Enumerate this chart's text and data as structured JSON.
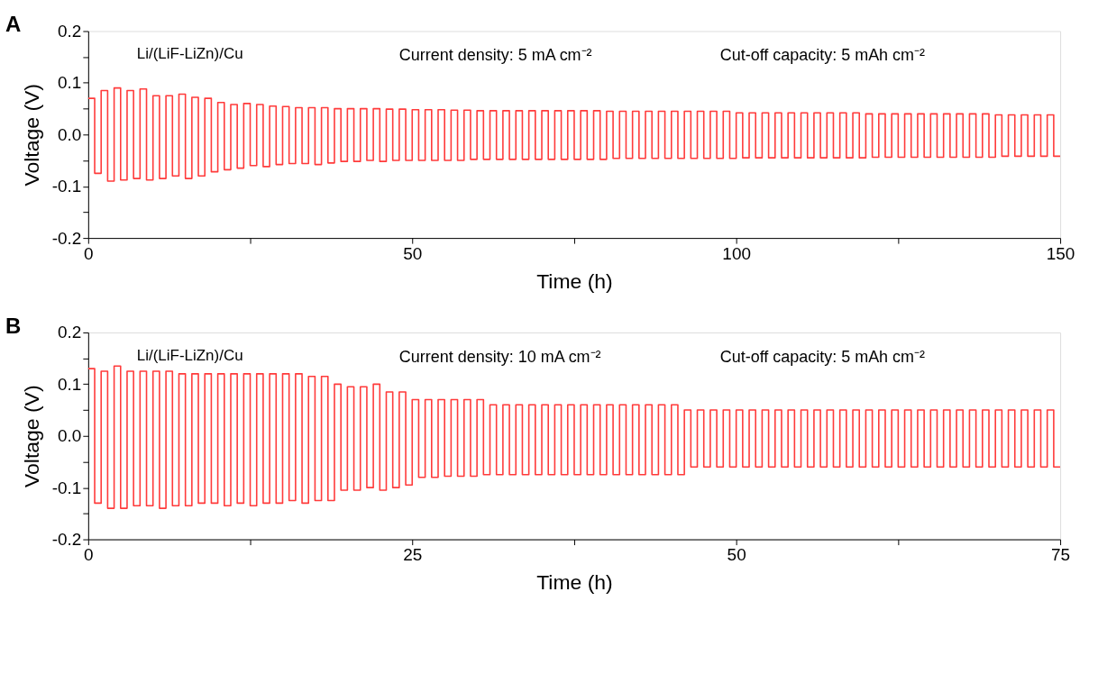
{
  "chart_data": [
    {
      "type": "step",
      "xlabel": "Time (h)",
      "ylabel": "Voltage (V)",
      "grid": false,
      "annotations": [
        "A",
        "Li/(LiF-LiZn)/Cu",
        "Current density: 5 mA cm⁻²",
        "Cut-off capacity: 5 mAh cm⁻²"
      ],
      "xlim": [
        0,
        150
      ],
      "xticks": [
        0,
        {
          "value": 25,
          "label": null
        },
        50,
        {
          "value": 75,
          "label": null
        },
        100,
        {
          "value": 125,
          "label": null
        },
        150
      ],
      "ylim": [
        -0.2,
        0.2
      ],
      "yticks": [
        -0.2,
        {
          "value": -0.15,
          "label": null
        },
        -0.1,
        {
          "value": -0.05,
          "label": null
        },
        {
          "value": 0,
          "label": "0.0"
        },
        {
          "value": 0.05,
          "label": null
        },
        0.1,
        {
          "value": 0.15,
          "label": null
        },
        0.2
      ],
      "series": [
        {
          "color": "#ff3b3b",
          "x": [
            0,
            1,
            2,
            3,
            4,
            5,
            6,
            7,
            8,
            9,
            10,
            11,
            12,
            13,
            14,
            15,
            16,
            17,
            18,
            19,
            20,
            21,
            22,
            23,
            24,
            25,
            26,
            27,
            28,
            29,
            30,
            31,
            32,
            33,
            34,
            35,
            36,
            37,
            38,
            39,
            40,
            41,
            42,
            43,
            44,
            45,
            46,
            47,
            48,
            49,
            50,
            51,
            52,
            53,
            54,
            55,
            56,
            57,
            58,
            59,
            60,
            61,
            62,
            63,
            64,
            65,
            66,
            67,
            68,
            69,
            70,
            71,
            72,
            73,
            74,
            75,
            76,
            77,
            78,
            79,
            80,
            81,
            82,
            83,
            84,
            85,
            86,
            87,
            88,
            89,
            90,
            91,
            92,
            93,
            94,
            95,
            96,
            97,
            98,
            99,
            100,
            101,
            102,
            103,
            104,
            105,
            106,
            107,
            108,
            109,
            110,
            111,
            112,
            113,
            114,
            115,
            116,
            117,
            118,
            119,
            120,
            121,
            122,
            123,
            124,
            125,
            126,
            127,
            128,
            129,
            130,
            131,
            132,
            133,
            134,
            135,
            136,
            137,
            138,
            139,
            140,
            141,
            142,
            143,
            144,
            145,
            146,
            147,
            148,
            149,
            150
          ],
          "values": [
            0.07,
            -0.075,
            0.085,
            -0.09,
            0.09,
            -0.088,
            0.085,
            -0.085,
            0.088,
            -0.088,
            0.075,
            -0.085,
            0.075,
            -0.08,
            0.078,
            -0.085,
            0.072,
            -0.08,
            0.07,
            -0.072,
            0.062,
            -0.068,
            0.058,
            -0.065,
            0.06,
            -0.06,
            0.058,
            -0.062,
            0.055,
            -0.058,
            0.054,
            -0.056,
            0.052,
            -0.056,
            0.052,
            -0.058,
            0.052,
            -0.055,
            0.05,
            -0.052,
            0.05,
            -0.052,
            0.05,
            -0.05,
            0.05,
            -0.052,
            0.049,
            -0.05,
            0.049,
            -0.05,
            0.048,
            -0.05,
            0.048,
            -0.05,
            0.048,
            -0.05,
            0.047,
            -0.05,
            0.047,
            -0.048,
            0.046,
            -0.048,
            0.046,
            -0.048,
            0.046,
            -0.048,
            0.046,
            -0.048,
            0.046,
            -0.048,
            0.046,
            -0.048,
            0.046,
            -0.048,
            0.046,
            -0.048,
            0.046,
            -0.048,
            0.046,
            -0.048,
            0.045,
            -0.046,
            0.045,
            -0.046,
            0.045,
            -0.046,
            0.045,
            -0.046,
            0.045,
            -0.046,
            0.045,
            -0.046,
            0.045,
            -0.046,
            0.045,
            -0.046,
            0.045,
            -0.046,
            0.045,
            -0.046,
            0.042,
            -0.045,
            0.042,
            -0.045,
            0.042,
            -0.045,
            0.042,
            -0.045,
            0.042,
            -0.045,
            0.042,
            -0.045,
            0.042,
            -0.045,
            0.042,
            -0.045,
            0.042,
            -0.045,
            0.042,
            -0.045,
            0.04,
            -0.044,
            0.04,
            -0.044,
            0.04,
            -0.044,
            0.04,
            -0.044,
            0.04,
            -0.044,
            0.04,
            -0.044,
            0.04,
            -0.044,
            0.04,
            -0.044,
            0.04,
            -0.044,
            0.04,
            -0.044,
            0.038,
            -0.042,
            0.038,
            -0.042,
            0.038,
            -0.042,
            0.038,
            -0.042,
            0.038,
            -0.042,
            -0.042
          ]
        }
      ]
    },
    {
      "type": "step",
      "xlabel": "Time (h)",
      "ylabel": "Voltage (V)",
      "grid": false,
      "annotations": [
        "B",
        "Li/(LiF-LiZn)/Cu",
        "Current density: 10 mA cm⁻²",
        "Cut-off capacity: 5 mAh cm⁻²"
      ],
      "xlim": [
        0,
        75
      ],
      "xticks": [
        0,
        {
          "value": 12.5,
          "label": null
        },
        25,
        {
          "value": 37.5,
          "label": null
        },
        50,
        {
          "value": 62.5,
          "label": null
        },
        75
      ],
      "ylim": [
        -0.2,
        0.2
      ],
      "yticks": [
        -0.2,
        {
          "value": -0.15,
          "label": null
        },
        -0.1,
        {
          "value": -0.05,
          "label": null
        },
        {
          "value": 0,
          "label": "0.0"
        },
        {
          "value": 0.05,
          "label": null
        },
        0.1,
        {
          "value": 0.15,
          "label": null
        },
        0.2
      ],
      "series": [
        {
          "color": "#ff3b3b",
          "x": [
            0,
            0.5,
            1,
            1.5,
            2,
            2.5,
            3,
            3.5,
            4,
            4.5,
            5,
            5.5,
            6,
            6.5,
            7,
            7.5,
            8,
            8.5,
            9,
            9.5,
            10,
            10.5,
            11,
            11.5,
            12,
            12.5,
            13,
            13.5,
            14,
            14.5,
            15,
            15.5,
            16,
            16.5,
            17,
            17.5,
            18,
            18.5,
            19,
            19.5,
            20,
            20.5,
            21,
            21.5,
            22,
            22.5,
            23,
            23.5,
            24,
            24.5,
            25,
            25.5,
            26,
            26.5,
            27,
            27.5,
            28,
            28.5,
            29,
            29.5,
            30,
            30.5,
            31,
            31.5,
            32,
            32.5,
            33,
            33.5,
            34,
            34.5,
            35,
            35.5,
            36,
            36.5,
            37,
            37.5,
            38,
            38.5,
            39,
            39.5,
            40,
            40.5,
            41,
            41.5,
            42,
            42.5,
            43,
            43.5,
            44,
            44.5,
            45,
            45.5,
            46,
            46.5,
            47,
            47.5,
            48,
            48.5,
            49,
            49.5,
            50,
            50.5,
            51,
            51.5,
            52,
            52.5,
            53,
            53.5,
            54,
            54.5,
            55,
            55.5,
            56,
            56.5,
            57,
            57.5,
            58,
            58.5,
            59,
            59.5,
            60,
            60.5,
            61,
            61.5,
            62,
            62.5,
            63,
            63.5,
            64,
            64.5,
            65,
            65.5,
            66,
            66.5,
            67,
            67.5,
            68,
            68.5,
            69,
            69.5,
            70,
            70.5,
            71,
            71.5,
            72,
            72.5,
            73,
            73.5,
            74,
            74.5,
            75
          ],
          "values": [
            0.13,
            -0.13,
            0.125,
            -0.14,
            0.135,
            -0.14,
            0.125,
            -0.135,
            0.125,
            -0.135,
            0.125,
            -0.14,
            0.125,
            -0.135,
            0.12,
            -0.135,
            0.12,
            -0.13,
            0.12,
            -0.13,
            0.12,
            -0.135,
            0.12,
            -0.13,
            0.12,
            -0.135,
            0.12,
            -0.13,
            0.12,
            -0.13,
            0.12,
            -0.125,
            0.12,
            -0.13,
            0.115,
            -0.125,
            0.115,
            -0.125,
            0.1,
            -0.105,
            0.095,
            -0.105,
            0.095,
            -0.1,
            0.1,
            -0.105,
            0.085,
            -0.1,
            0.085,
            -0.095,
            0.07,
            -0.08,
            0.07,
            -0.08,
            0.07,
            -0.078,
            0.07,
            -0.078,
            0.07,
            -0.078,
            0.07,
            -0.075,
            0.06,
            -0.075,
            0.06,
            -0.075,
            0.06,
            -0.075,
            0.06,
            -0.075,
            0.06,
            -0.075,
            0.06,
            -0.075,
            0.06,
            -0.075,
            0.06,
            -0.075,
            0.06,
            -0.075,
            0.06,
            -0.075,
            0.06,
            -0.075,
            0.06,
            -0.075,
            0.06,
            -0.075,
            0.06,
            -0.075,
            0.06,
            -0.075,
            0.05,
            -0.06,
            0.05,
            -0.06,
            0.05,
            -0.06,
            0.05,
            -0.06,
            0.05,
            -0.06,
            0.05,
            -0.06,
            0.05,
            -0.06,
            0.05,
            -0.06,
            0.05,
            -0.06,
            0.05,
            -0.06,
            0.05,
            -0.06,
            0.05,
            -0.06,
            0.05,
            -0.06,
            0.05,
            -0.06,
            0.05,
            -0.06,
            0.05,
            -0.06,
            0.05,
            -0.06,
            0.05,
            -0.06,
            0.05,
            -0.06,
            0.05,
            -0.06,
            0.05,
            -0.06,
            0.05,
            -0.06,
            0.05,
            -0.06,
            0.05,
            -0.06,
            0.05,
            -0.06,
            0.05,
            -0.06,
            0.05,
            -0.06,
            0.05,
            -0.06,
            0.05,
            -0.06,
            -0.06
          ]
        }
      ]
    }
  ]
}
